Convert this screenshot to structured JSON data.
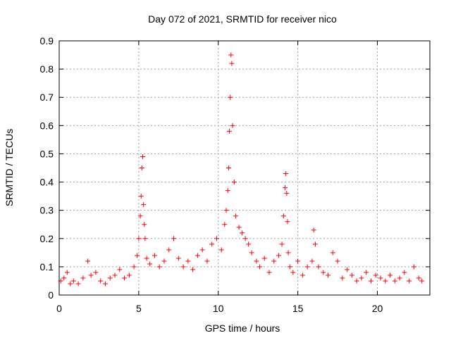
{
  "chart_data": {
    "type": "scatter",
    "title": "Day 072 of 2021, SRMTID for receiver nico",
    "xlabel": "GPS time / hours",
    "ylabel": "SRMTID / TECUs",
    "xlim": [
      0,
      23.3
    ],
    "ylim": [
      0,
      0.9
    ],
    "x_ticks": [
      "0",
      "5",
      "10",
      "15",
      "20"
    ],
    "y_ticks": [
      "0",
      "0.1",
      "0.2",
      "0.3",
      "0.4",
      "0.5",
      "0.6",
      "0.7",
      "0.8",
      "0.9"
    ],
    "grid": true,
    "marker": "plus",
    "series": [
      {
        "name": "SRMTID",
        "color": "#ff0000",
        "x": [
          0.1,
          0.3,
          0.5,
          0.7,
          0.9,
          1.2,
          1.5,
          1.8,
          2.0,
          2.3,
          2.6,
          2.9,
          3.2,
          3.5,
          3.8,
          4.1,
          4.4,
          4.7,
          4.9,
          5.0,
          5.1,
          5.15,
          5.2,
          5.25,
          5.3,
          5.35,
          5.4,
          5.5,
          5.7,
          6.0,
          6.3,
          6.6,
          6.9,
          7.2,
          7.5,
          7.8,
          8.1,
          8.4,
          8.7,
          9.0,
          9.3,
          9.6,
          9.9,
          10.2,
          10.4,
          10.5,
          10.6,
          10.65,
          10.7,
          10.75,
          10.8,
          10.85,
          10.9,
          11.0,
          11.1,
          11.3,
          11.5,
          11.7,
          11.9,
          12.1,
          12.4,
          12.6,
          12.9,
          13.2,
          13.5,
          13.8,
          14.0,
          14.1,
          14.2,
          14.25,
          14.3,
          14.35,
          14.4,
          14.5,
          14.7,
          15.0,
          15.3,
          15.6,
          15.9,
          16.0,
          16.1,
          16.3,
          16.6,
          16.9,
          17.2,
          17.5,
          17.8,
          18.1,
          18.4,
          18.7,
          19.0,
          19.3,
          19.6,
          19.9,
          20.2,
          20.5,
          20.8,
          21.1,
          21.4,
          21.7,
          22.0,
          22.3,
          22.6,
          22.8
        ],
        "y": [
          0.05,
          0.06,
          0.08,
          0.04,
          0.05,
          0.04,
          0.06,
          0.12,
          0.07,
          0.08,
          0.05,
          0.04,
          0.06,
          0.07,
          0.09,
          0.06,
          0.07,
          0.1,
          0.14,
          0.2,
          0.28,
          0.35,
          0.45,
          0.49,
          0.32,
          0.25,
          0.2,
          0.13,
          0.11,
          0.14,
          0.1,
          0.12,
          0.16,
          0.2,
          0.13,
          0.1,
          0.12,
          0.09,
          0.14,
          0.16,
          0.12,
          0.18,
          0.2,
          0.16,
          0.25,
          0.3,
          0.37,
          0.45,
          0.58,
          0.7,
          0.85,
          0.82,
          0.6,
          0.4,
          0.28,
          0.24,
          0.22,
          0.2,
          0.18,
          0.15,
          0.12,
          0.1,
          0.13,
          0.08,
          0.12,
          0.14,
          0.18,
          0.28,
          0.38,
          0.43,
          0.36,
          0.26,
          0.15,
          0.1,
          0.08,
          0.12,
          0.07,
          0.1,
          0.12,
          0.23,
          0.18,
          0.1,
          0.08,
          0.07,
          0.15,
          0.12,
          0.06,
          0.09,
          0.07,
          0.05,
          0.06,
          0.08,
          0.05,
          0.07,
          0.06,
          0.05,
          0.07,
          0.05,
          0.06,
          0.08,
          0.05,
          0.1,
          0.06,
          0.05
        ]
      }
    ]
  }
}
